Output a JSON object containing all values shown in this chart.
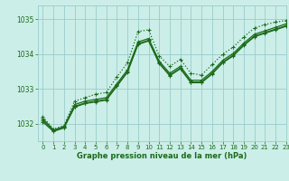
{
  "title": "Graphe pression niveau de la mer (hPa)",
  "background_color": "#cceee8",
  "grid_color": "#99cccc",
  "line_color": "#1a6b1a",
  "marker_color": "#1a6b1a",
  "xlim": [
    -0.5,
    23
  ],
  "ylim": [
    1031.5,
    1035.4
  ],
  "yticks": [
    1032,
    1033,
    1034,
    1035
  ],
  "xticks": [
    0,
    1,
    2,
    3,
    4,
    5,
    6,
    7,
    8,
    9,
    10,
    11,
    12,
    13,
    14,
    15,
    16,
    17,
    18,
    19,
    20,
    21,
    22,
    23
  ],
  "series": [
    {
      "y": [
        1032.2,
        1031.85,
        1031.95,
        1032.65,
        1032.75,
        1032.85,
        1032.9,
        1033.35,
        1033.75,
        1034.65,
        1034.7,
        1033.95,
        1033.65,
        1033.85,
        1033.45,
        1033.4,
        1033.7,
        1034.0,
        1034.2,
        1034.5,
        1034.75,
        1034.85,
        1034.92,
        1034.97
      ],
      "linestyle": ":",
      "linewidth": 0.9,
      "marker": "+"
    },
    {
      "y": [
        1032.15,
        1031.82,
        1031.92,
        1032.55,
        1032.65,
        1032.7,
        1032.75,
        1033.15,
        1033.55,
        1034.35,
        1034.45,
        1033.8,
        1033.45,
        1033.65,
        1033.25,
        1033.25,
        1033.5,
        1033.82,
        1034.02,
        1034.32,
        1034.57,
        1034.67,
        1034.77,
        1034.87
      ],
      "linestyle": "-",
      "linewidth": 0.9,
      "marker": "+"
    },
    {
      "y": [
        1032.1,
        1031.8,
        1031.9,
        1032.5,
        1032.6,
        1032.65,
        1032.7,
        1033.1,
        1033.5,
        1034.3,
        1034.4,
        1033.75,
        1033.4,
        1033.6,
        1033.2,
        1033.2,
        1033.45,
        1033.77,
        1033.97,
        1034.27,
        1034.52,
        1034.62,
        1034.72,
        1034.82
      ],
      "linestyle": "-",
      "linewidth": 0.9,
      "marker": "+"
    },
    {
      "y": [
        1032.05,
        1031.78,
        1031.88,
        1032.48,
        1032.58,
        1032.63,
        1032.68,
        1033.08,
        1033.48,
        1034.28,
        1034.38,
        1033.73,
        1033.38,
        1033.58,
        1033.18,
        1033.18,
        1033.43,
        1033.75,
        1033.95,
        1034.25,
        1034.5,
        1034.6,
        1034.7,
        1034.8
      ],
      "linestyle": "-",
      "linewidth": 0.9,
      "marker": "+"
    }
  ]
}
